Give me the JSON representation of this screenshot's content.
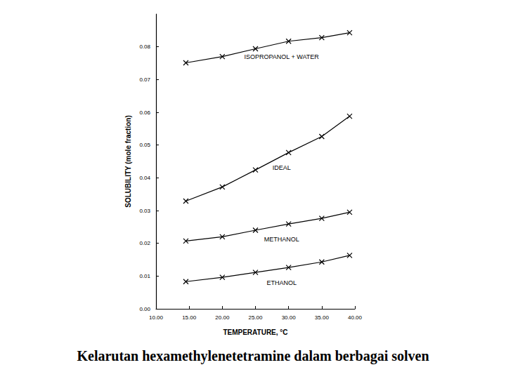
{
  "chart_data": {
    "type": "line",
    "title": "Kelarutan hexamethylenetetramine dalam berbagai solven",
    "x_label": "TEMPERATURE, °C",
    "y_label": "SOLUBILITY (mole fraction)",
    "x": [
      14.5,
      20,
      25,
      30,
      35,
      39.2
    ],
    "series": [
      {
        "name": "ISOPROPANOL + WATER",
        "color": "#000000",
        "marker": "x",
        "line_style": "solid",
        "values": [
          0.0751,
          0.077,
          0.0794,
          0.0817,
          0.0828,
          0.0843
        ]
      },
      {
        "name": "IDEAL",
        "color": "#000000",
        "marker": "x",
        "line_style": "solid",
        "values": [
          0.0329,
          0.0372,
          0.0424,
          0.0477,
          0.0526,
          0.0588
        ]
      },
      {
        "name": "METHANOL",
        "color": "#000000",
        "marker": "x",
        "line_style": "solid",
        "values": [
          0.0207,
          0.022,
          0.024,
          0.0259,
          0.0276,
          0.0295
        ]
      },
      {
        "name": "ETHANOL",
        "color": "#000000",
        "marker": "x",
        "line_style": "solid",
        "values": [
          0.0083,
          0.0096,
          0.0111,
          0.0126,
          0.0143,
          0.0163
        ]
      }
    ],
    "xlim": [
      10,
      40
    ],
    "xticks": [
      {
        "value": 10,
        "label": "10.00"
      },
      {
        "value": 15,
        "label": "15.00"
      },
      {
        "value": 20,
        "label": "20.00"
      },
      {
        "value": 25,
        "label": "25.00"
      },
      {
        "value": 30,
        "label": "30.00"
      },
      {
        "value": 35,
        "label": "35.00"
      },
      {
        "value": 40,
        "label": "40.00"
      }
    ],
    "ylim": [
      0,
      0.09
    ],
    "yticks": [
      {
        "value": 0,
        "label": "0.00"
      },
      {
        "value": 0.01,
        "label": "0.01"
      },
      {
        "value": 0.02,
        "label": "0.02"
      },
      {
        "value": 0.03,
        "label": "0.03"
      },
      {
        "value": 0.04,
        "label": "0.04"
      },
      {
        "value": 0.05,
        "label": "0.05"
      },
      {
        "value": 0.06,
        "label": "0.06"
      },
      {
        "value": 0.07,
        "label": "0.07"
      },
      {
        "value": 0.08,
        "label": "0.08"
      }
    ],
    "grid": false
  }
}
